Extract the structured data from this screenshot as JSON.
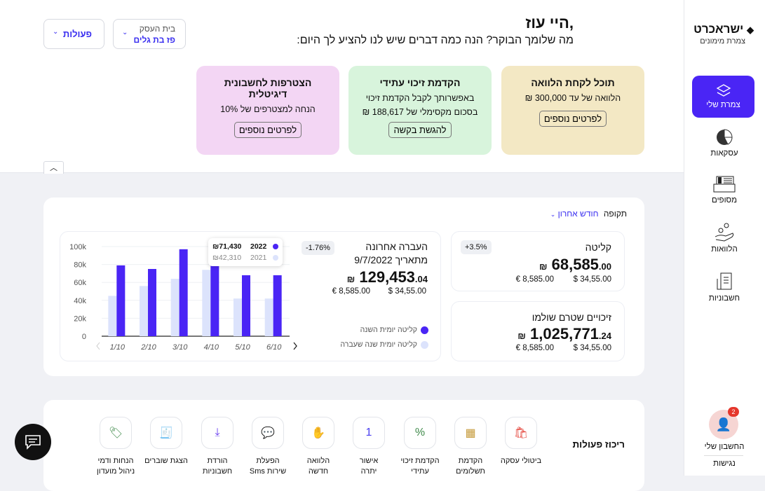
{
  "header": {
    "greeting": "היי עוז,",
    "subtitle": "מה שלומך הבוקר?  הנה כמה דברים שיש לנו להציע לך היום:",
    "business_label": "בית העסק",
    "business_value": "פז בת גלים",
    "actions_label": "פעולות"
  },
  "offers": [
    {
      "title": "תוכל לקחת הלוואה",
      "line1": "הלוואה של עד 300,000 ₪",
      "line2": "",
      "button": "לפרטים נוספים",
      "color": "#f3e8c4"
    },
    {
      "title": "הקדמת זיכוי עתידי",
      "line1": "באפשרותך לקבל הקדמת זיכוי",
      "line2": "בסכום מקסימלי של 188,617 ₪",
      "button": "להגשת בקשה",
      "color": "#d8f4dc"
    },
    {
      "title": "הצטרפות לחשבונית דיגיטלית",
      "line1": "הנחה למצטרפים של 10%",
      "line2": "",
      "button": "לפרטים נוספים",
      "color": "#f3d6f4"
    }
  ],
  "period": {
    "label": "תקופה",
    "value": "חודש אחרון"
  },
  "kpis": {
    "intake": {
      "title": "קליטה",
      "badge": "+3.5%",
      "amount": "68,585",
      "cents": ".00",
      "currency": "₪",
      "usd": "$  34,55.00",
      "eur": "€ 8,585.00"
    },
    "credits": {
      "title": "זיכויים שטרם שולמו",
      "amount": "1,025,771",
      "cents": ".24",
      "currency": "₪",
      "usd": "$  34,55.00",
      "eur": "€ 8,585.00"
    },
    "last_transfer": {
      "title": "העברה אחרונה",
      "date": "מתאריך 9/7/2022",
      "badge": "-1.76%",
      "amount": "129,453",
      "cents": ".04",
      "currency": "₪",
      "usd": "$  34,55.00",
      "eur": "€ 8,585.00"
    }
  },
  "chart_data": {
    "type": "bar",
    "categories": [
      "1/10",
      "2/10",
      "3/10",
      "4/10",
      "5/10",
      "6/10"
    ],
    "series": [
      {
        "name": "קליטה יומית שנה שעברה",
        "values": [
          45,
          56,
          64,
          74,
          42,
          42
        ],
        "color": "#dce3fc"
      },
      {
        "name": "קליטה יומית השנה",
        "values": [
          79,
          75,
          97,
          80,
          68,
          68
        ],
        "color": "#4a25f5"
      }
    ],
    "yticks": [
      "0",
      "20k",
      "40k",
      "60k",
      "80k",
      "100k"
    ],
    "ylim": [
      0,
      100
    ],
    "tooltip": {
      "year1": "2022",
      "value1": "₪71,430",
      "year2": "2021",
      "value2": "₪42,310"
    }
  },
  "actions": {
    "title": "ריכוז פעולות",
    "items": [
      {
        "l1": "ביטולי עסקה",
        "l2": ""
      },
      {
        "l1": "הקדמת",
        "l2": "תשלומים"
      },
      {
        "l1": "הקדמת זיכוי",
        "l2": "עתידי"
      },
      {
        "l1": "אישור",
        "l2": "יתרה"
      },
      {
        "l1": "הלוואה",
        "l2": "חדשה"
      },
      {
        "l1": "הפעלת",
        "l2": "שירות Sms"
      },
      {
        "l1": "הורדת",
        "l2": "חשבוניות"
      },
      {
        "l1": "הצגת שוברים",
        "l2": ""
      },
      {
        "l1": "הנחות ודמי",
        "l2": "ניהול מועדון"
      }
    ]
  },
  "sidebar": {
    "brand": "ישראכרט",
    "brand_sub": "צמרת מימונים",
    "items": [
      "צמרת שלי",
      "עסקאות",
      "מסופים",
      "הלוואות",
      "חשבוניות"
    ],
    "account": "החשבון שלי",
    "accessibility": "נגישות",
    "notif_count": "2"
  }
}
